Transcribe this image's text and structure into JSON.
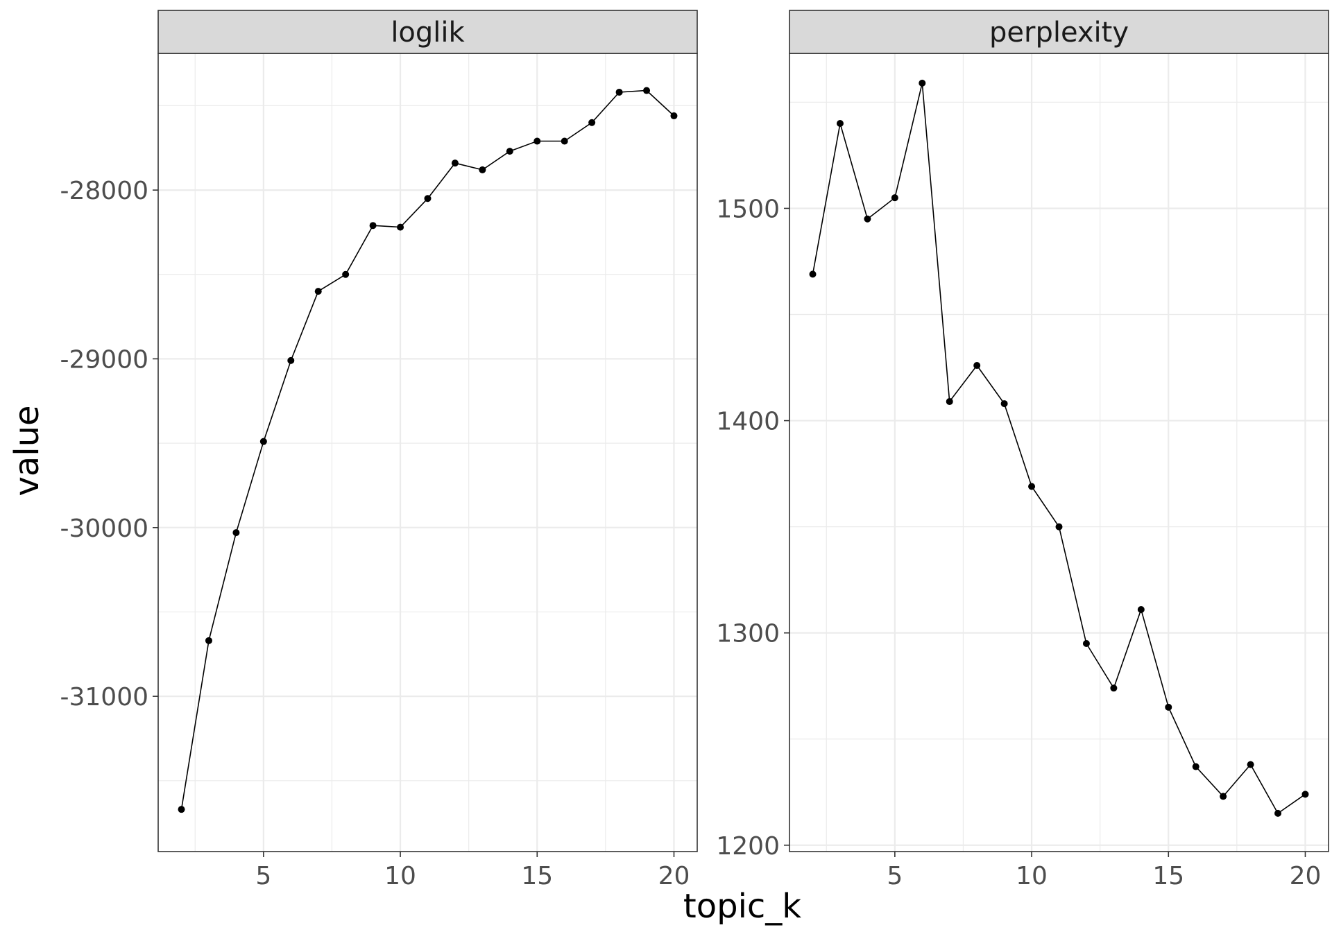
{
  "chart_data": {
    "type": "line",
    "xlabel": "topic_k",
    "ylabel": "value",
    "grid": true,
    "colors": {
      "strip_fill": "#d9d9d9",
      "border": "#333333",
      "grid": "#ebebeb",
      "line": "#000000"
    },
    "panels": [
      {
        "title": "loglik",
        "xlim": [
          1.15,
          20.85
        ],
        "ylim": [
          -31920,
          -27190
        ],
        "xticks": [
          5,
          10,
          15,
          20
        ],
        "xtick_labels": [
          "5",
          "10",
          "15",
          "20"
        ],
        "yticks": [
          -28000,
          -29000,
          -30000,
          -31000
        ],
        "ytick_labels": [
          "-28000",
          "-29000",
          "-30000",
          "-31000"
        ],
        "x": [
          2,
          3,
          4,
          5,
          6,
          7,
          8,
          9,
          10,
          11,
          12,
          13,
          14,
          15,
          16,
          17,
          18,
          19,
          20
        ],
        "values": [
          -31670,
          -30670,
          -30030,
          -29490,
          -29010,
          -28600,
          -28500,
          -28210,
          -28220,
          -28050,
          -27840,
          -27880,
          -27770,
          -27710,
          -27710,
          -27600,
          -27420,
          -27410,
          -27560
        ]
      },
      {
        "title": "perplexity",
        "xlim": [
          1.15,
          20.85
        ],
        "ylim": [
          1197,
          1573
        ],
        "xticks": [
          5,
          10,
          15,
          20
        ],
        "xtick_labels": [
          "5",
          "10",
          "15",
          "20"
        ],
        "yticks": [
          1200,
          1300,
          1400,
          1500
        ],
        "ytick_labels": [
          "1200",
          "1300",
          "1400",
          "1500"
        ],
        "x": [
          2,
          3,
          4,
          5,
          6,
          7,
          8,
          9,
          10,
          11,
          12,
          13,
          14,
          15,
          16,
          17,
          18,
          19,
          20
        ],
        "values": [
          1469,
          1540,
          1495,
          1505,
          1559,
          1409,
          1426,
          1408,
          1369,
          1350,
          1295,
          1274,
          1311,
          1265,
          1237,
          1223,
          1238,
          1215,
          1224
        ]
      }
    ]
  }
}
